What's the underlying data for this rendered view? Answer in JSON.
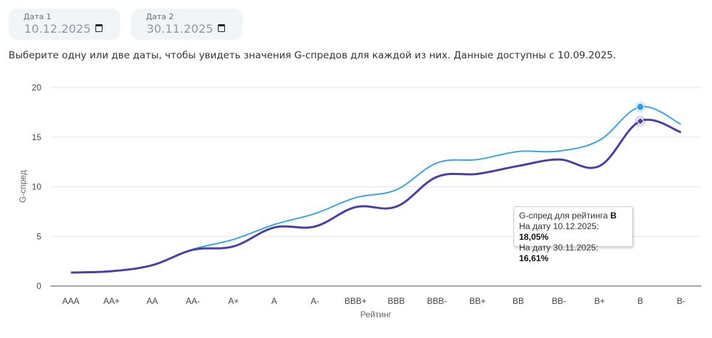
{
  "date_inputs": [
    {
      "label": "Дата 1",
      "value": "10.12.2025",
      "icon": "calendar-icon"
    },
    {
      "label": "Дата 2",
      "value": "30.11.2025",
      "icon": "calendar-icon"
    }
  ],
  "hint_text": "Выберите одну или две даты, чтобы увидеть значения G-спредов для каждой из них. Данные доступны с 10.09.2025.",
  "tooltip": {
    "title_prefix": "G-спред для рейтинга ",
    "title_rating": "B",
    "line1_prefix": "На дату 10.12.2025: ",
    "line1_value": "18,05%",
    "line2_prefix": "На дату 30.11.2025: ",
    "line2_value": "16,61%"
  },
  "colors": {
    "series1": "#3aa6dc",
    "series2": "#4a3fa5",
    "marker1": "#2f9ff0",
    "marker2": "#4a3fa5",
    "grid": "#e6e6e6",
    "axis": "#8c8c8c"
  },
  "chart_data": {
    "type": "line",
    "title": "",
    "xlabel": "Рейтинг",
    "ylabel": "G-спред",
    "ylim": [
      0,
      20
    ],
    "yticks": [
      0,
      5,
      10,
      15,
      20
    ],
    "grid": true,
    "legend": "none",
    "categories": [
      "AAA",
      "AA+",
      "AA",
      "AA-",
      "A+",
      "A",
      "A-",
      "BBB+",
      "BBB",
      "BBB-",
      "BB+",
      "BB",
      "BB-",
      "B+",
      "B",
      "B-"
    ],
    "series": [
      {
        "name": "10.12.2025",
        "values": [
          1.36,
          1.5,
          2.1,
          3.7,
          4.7,
          6.2,
          7.3,
          8.9,
          9.7,
          12.4,
          12.75,
          13.55,
          13.6,
          14.7,
          18.05,
          16.3
        ]
      },
      {
        "name": "30.11.2025",
        "values": [
          1.36,
          1.5,
          2.1,
          3.65,
          4.0,
          5.9,
          6.0,
          7.95,
          8.0,
          11.0,
          11.3,
          12.1,
          12.75,
          12.1,
          16.61,
          15.5
        ]
      }
    ],
    "highlighted_category": "B"
  }
}
